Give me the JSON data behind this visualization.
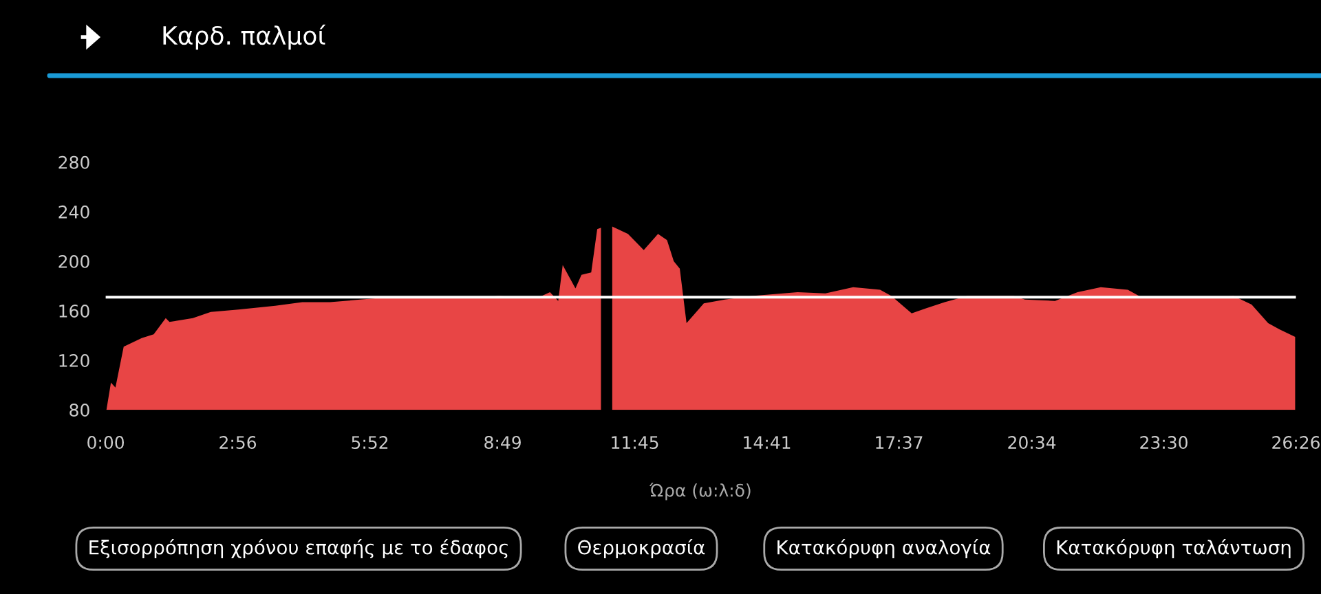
{
  "chart_data": {
    "type": "area",
    "title": "Καρδ. παλμοί",
    "xlabel": "Ώρα (ω:λ:δ)",
    "x": [
      1,
      7,
      13,
      24,
      48,
      64,
      80,
      85,
      116,
      140,
      177,
      226,
      262,
      299,
      359,
      422,
      482,
      524,
      574,
      592,
      603,
      609,
      626,
      634,
      647,
      655,
      660,
      665,
      675,
      696,
      717,
      736,
      748,
      757,
      765,
      774,
      797,
      825,
      861,
      922,
      959,
      996,
      1032,
      1047,
      1074,
      1093,
      1118,
      1148,
      1210,
      1225,
      1265,
      1295,
      1326,
      1362,
      1380,
      1460,
      1503,
      1527,
      1549,
      1564,
      1585
    ],
    "series": [
      {
        "color": "#e84545",
        "values": [
          80,
          102,
          98,
          131,
          138,
          141,
          154,
          151,
          154,
          159,
          161,
          164,
          167,
          167,
          170,
          170,
          170,
          172,
          170,
          175,
          168,
          197,
          178,
          189,
          191,
          226,
          227,
          null,
          228,
          222,
          209,
          222,
          217,
          200,
          194,
          150,
          166,
          169,
          172,
          175,
          174,
          179,
          177,
          172,
          158,
          162,
          167,
          172,
          172,
          169,
          168,
          175,
          179,
          177,
          171,
          170,
          172,
          165,
          150,
          145,
          139
        ]
      }
    ],
    "xlim": [
      0,
      1586
    ],
    "xticks": [
      {
        "value": 0,
        "label": "0:00"
      },
      {
        "value": 176,
        "label": "2:56"
      },
      {
        "value": 352,
        "label": "5:52"
      },
      {
        "value": 529,
        "label": "8:49"
      },
      {
        "value": 705,
        "label": "11:45"
      },
      {
        "value": 881,
        "label": "14:41"
      },
      {
        "value": 1057,
        "label": "17:37"
      },
      {
        "value": 1234,
        "label": "20:34"
      },
      {
        "value": 1410,
        "label": "23:30"
      },
      {
        "value": 1586,
        "label": "26:26"
      }
    ],
    "ylim": [
      80,
      280
    ],
    "yticks": [
      80,
      120,
      160,
      200,
      240,
      280
    ],
    "ref_lines": [
      {
        "axis": "y",
        "value": 171,
        "color": "#ffffff"
      }
    ],
    "grid": false,
    "legend": false,
    "annotations": [
      "Εξισορρόπηση χρόνου επαφής με το έδαφος",
      "Θερμοκρασία",
      "Κατακόρυφη αναλογία",
      "Κατακόρυφη ταλάντωση"
    ]
  }
}
